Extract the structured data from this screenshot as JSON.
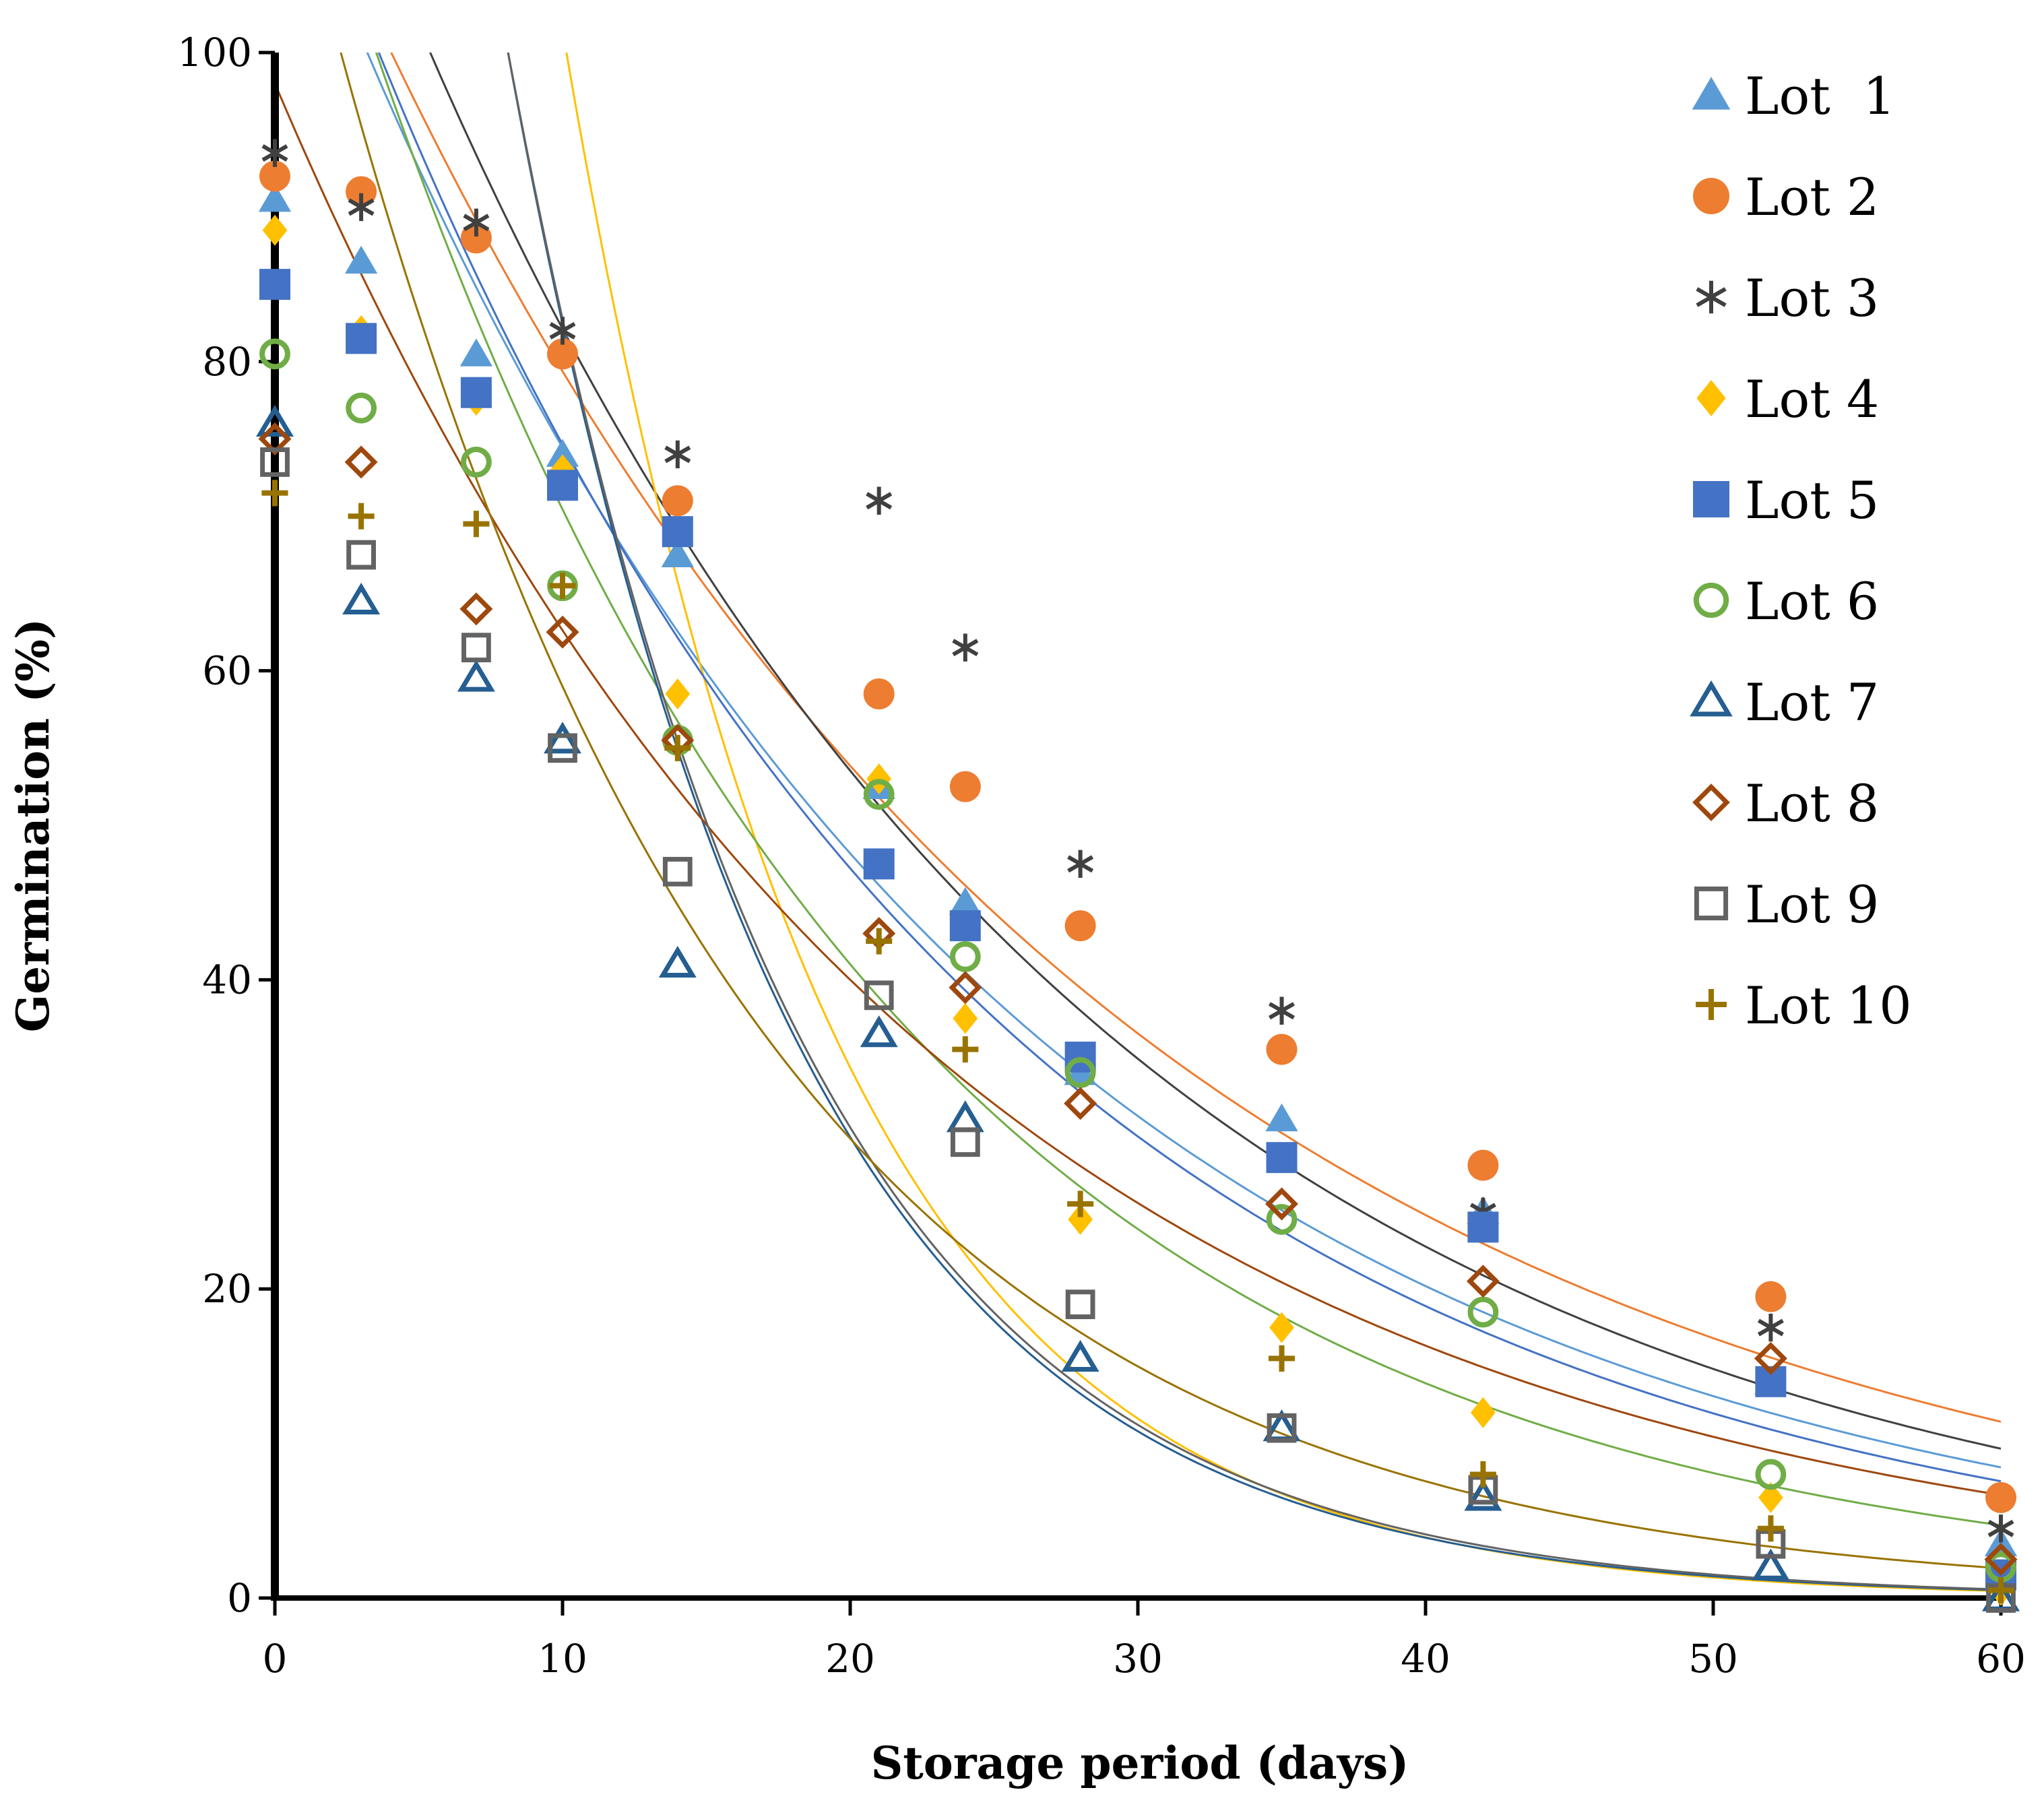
{
  "chart_data": {
    "type": "scatter",
    "title": "",
    "xlabel": "Storage period (days)",
    "ylabel": "Germination (%)",
    "xlim": [
      0,
      60
    ],
    "ylim": [
      0,
      100
    ],
    "x_ticks": [
      "0",
      "10",
      "20",
      "30",
      "40",
      "50",
      "60"
    ],
    "y_ticks": [
      "0",
      "20",
      "40",
      "60",
      "80",
      "100"
    ],
    "grid": false,
    "legend_position": "top-right",
    "x": [
      0,
      3,
      7,
      10,
      14,
      21,
      24,
      28,
      35,
      42,
      52,
      60
    ],
    "series": [
      {
        "name": "Lot  1",
        "marker": "triangle",
        "color": "#5B9BD5",
        "values": [
          90.5,
          86.5,
          80.5,
          74,
          67.5,
          52.5,
          45,
          34,
          31,
          25,
          14,
          3.5
        ],
        "trend": {
          "a": 115,
          "b": 0.0435
        }
      },
      {
        "name": "Lot 2",
        "marker": "circle",
        "color": "#ED7D31",
        "values": [
          92,
          91,
          88,
          80.5,
          71,
          58.5,
          52.5,
          43.5,
          35.5,
          28,
          19.5,
          6.5
        ],
        "trend": {
          "a": 117,
          "b": 0.0388
        }
      },
      {
        "name": "Lot 3",
        "marker": "asterisk",
        "color": "#404040",
        "values": [
          93.5,
          90,
          89,
          82,
          74,
          71,
          61.5,
          47.5,
          38,
          25,
          17.5,
          4.5
        ],
        "trend": {
          "a": 126,
          "b": 0.0428
        }
      },
      {
        "name": "Lot 4",
        "marker": "diamond",
        "color": "#FFC000",
        "values": [
          88.5,
          82,
          77.5,
          73,
          58.5,
          53,
          37.5,
          24.5,
          17.5,
          12,
          6.5,
          0.5
        ],
        "trend": {
          "a": 300,
          "b": 0.1084
        }
      },
      {
        "name": "Lot 5",
        "marker": "square",
        "color": "#4472C4",
        "values": [
          85,
          81.5,
          78,
          72,
          69,
          47.5,
          43.5,
          35,
          28.5,
          24,
          14,
          1.5
        ],
        "trend": {
          "a": 118,
          "b": 0.0458
        }
      },
      {
        "name": "Lot 6",
        "marker": "ring",
        "color": "#70AD47",
        "values": [
          80.5,
          77,
          73.5,
          65.5,
          55.5,
          52,
          41.5,
          34,
          24.5,
          18.5,
          8,
          2
        ],
        "trend": {
          "a": 121,
          "b": 0.0541
        }
      },
      {
        "name": "Lot 7",
        "marker": "triangle-open",
        "color": "#255E91",
        "values": [
          76,
          64.5,
          59.5,
          55.5,
          41,
          36.5,
          31,
          15.5,
          11,
          6.5,
          2,
          0
        ],
        "trend": {
          "a": 228,
          "b": 0.1017
        }
      },
      {
        "name": "Lot 8",
        "marker": "diamond-open",
        "color": "#9E480E",
        "values": [
          75,
          73.5,
          64,
          62.5,
          55.5,
          43,
          39.5,
          32,
          25.5,
          20.5,
          15.5,
          2.5
        ],
        "trend": {
          "a": 98,
          "b": 0.0448
        }
      },
      {
        "name": "Lot 9",
        "marker": "square-open",
        "color": "#636363",
        "values": [
          73.5,
          67.5,
          61.5,
          55,
          47,
          39,
          29.5,
          19,
          11,
          7,
          3.5,
          0
        ],
        "trend": {
          "a": 225,
          "b": 0.1
        }
      },
      {
        "name": "Lot 10",
        "marker": "plus",
        "color": "#997300",
        "values": [
          71.5,
          70,
          69.5,
          65.5,
          55,
          42.5,
          35.5,
          25.5,
          15.5,
          8,
          4.5,
          0.5
        ],
        "trend": {
          "a": 117,
          "b": 0.0685
        }
      }
    ]
  }
}
